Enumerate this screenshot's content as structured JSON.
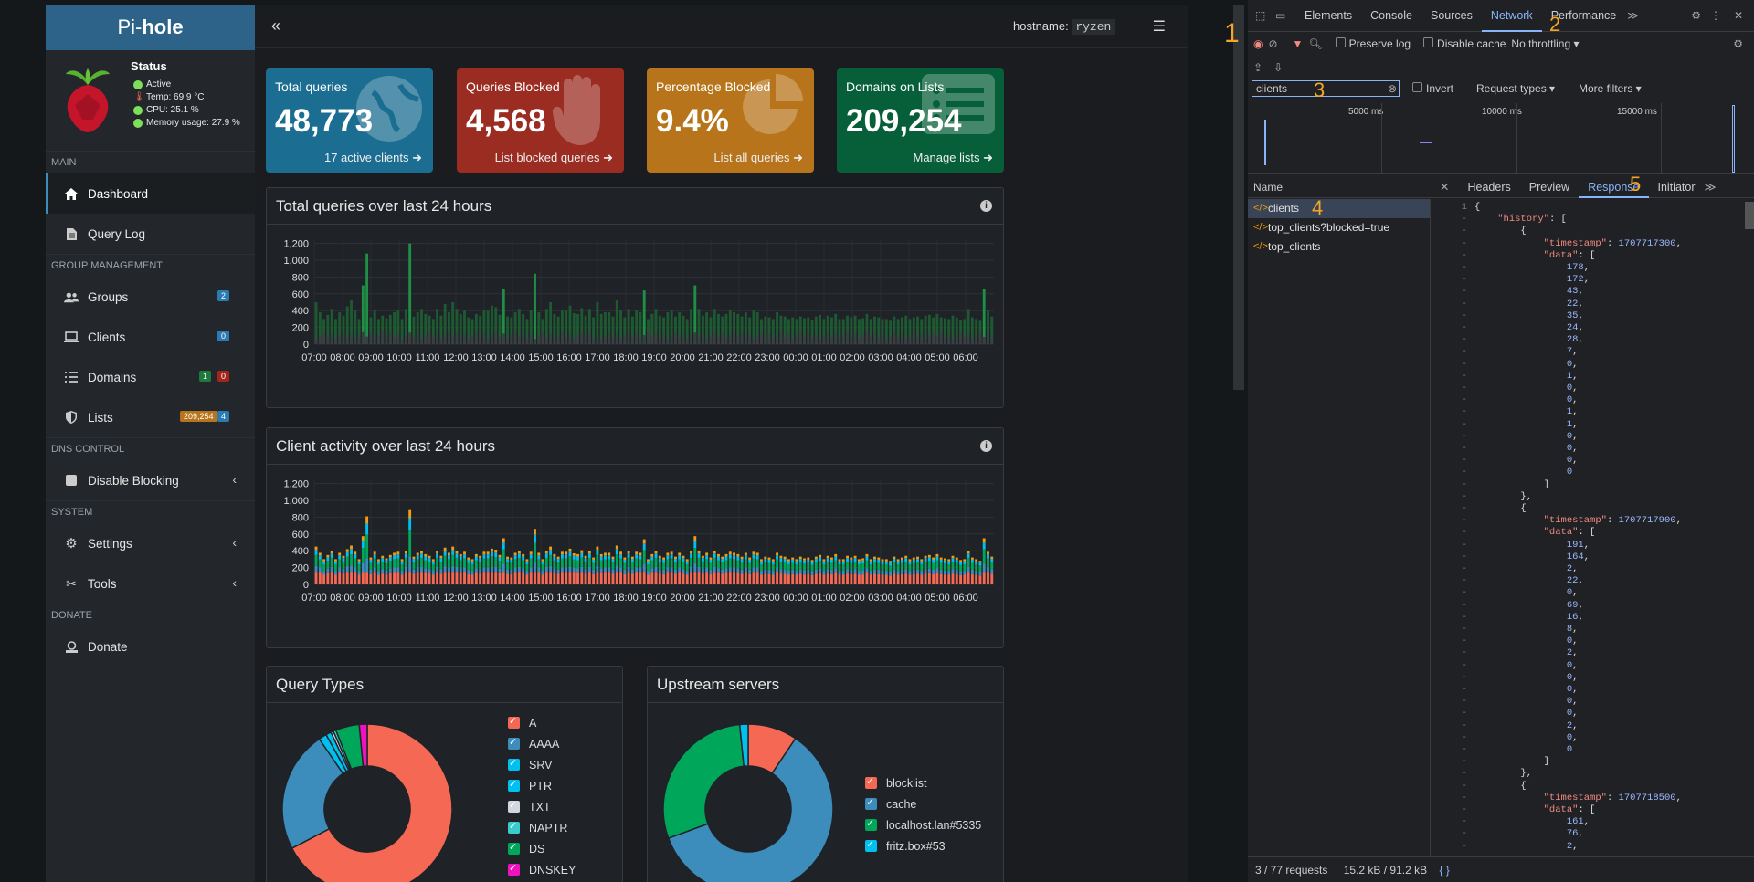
{
  "app": {
    "brand_pre": "Pi-",
    "brand_bold": "hole",
    "status_title": "Status",
    "status_active": "Active",
    "status_temp": "Temp: 69.9 °C",
    "status_cpu": "CPU: 25.1 %",
    "status_mem": "Memory usage: 27.9 %",
    "hostname_label": "hostname:",
    "hostname_value": "ryzen"
  },
  "sidebar": {
    "sections": [
      "MAIN",
      "GROUP MANAGEMENT",
      "DNS CONTROL",
      "SYSTEM",
      "DONATE"
    ],
    "items": [
      {
        "label": "Dashboard",
        "icon": "home-icon"
      },
      {
        "label": "Query Log",
        "icon": "file-icon"
      },
      {
        "label": "Groups",
        "icon": "users-icon",
        "badges": [
          "2"
        ]
      },
      {
        "label": "Clients",
        "icon": "laptop-icon",
        "badges": [
          "0"
        ]
      },
      {
        "label": "Domains",
        "icon": "list-icon",
        "badges": [
          "1",
          "0"
        ]
      },
      {
        "label": "Lists",
        "icon": "shield-icon",
        "badges": [
          "209,254",
          "4"
        ]
      },
      {
        "label": "Disable Blocking",
        "icon": "stop-icon"
      },
      {
        "label": "Settings",
        "icon": "gears-icon"
      },
      {
        "label": "Tools",
        "icon": "tools-icon"
      },
      {
        "label": "Donate",
        "icon": "donate-icon"
      }
    ]
  },
  "stats": [
    {
      "title": "Total queries",
      "value": "48,773",
      "footer": "17 active clients",
      "color": "#1b6d91"
    },
    {
      "title": "Queries Blocked",
      "value": "4,568",
      "footer": "List blocked queries",
      "color": "#9b2c22"
    },
    {
      "title": "Percentage Blocked",
      "value": "9.4%",
      "footer": "List all queries",
      "color": "#b7741a"
    },
    {
      "title": "Domains on Lists",
      "value": "209,254",
      "footer": "Manage lists",
      "color": "#065f38"
    }
  ],
  "panels": {
    "total_queries": "Total queries over last 24 hours",
    "client_activity": "Client activity over last 24 hours",
    "query_types": "Query Types",
    "upstream": "Upstream servers"
  },
  "chart_data": [
    {
      "type": "bar",
      "title": "Total queries over last 24 hours",
      "x_ticks": [
        "07:00",
        "08:00",
        "09:00",
        "10:00",
        "11:00",
        "12:00",
        "13:00",
        "14:00",
        "15:00",
        "16:00",
        "17:00",
        "18:00",
        "19:00",
        "20:00",
        "21:00",
        "22:00",
        "23:00",
        "00:00",
        "01:00",
        "02:00",
        "03:00",
        "04:00",
        "05:00",
        "06:00"
      ],
      "y_ticks": [
        0,
        200,
        400,
        600,
        800,
        1000,
        1200
      ],
      "ylim": [
        0,
        1250
      ],
      "series": [
        {
          "values": [
            500,
            380,
            300,
            350,
            420,
            300,
            380,
            340,
            450,
            520,
            400,
            300,
            700,
            1080,
            320,
            400,
            300,
            340,
            310,
            350,
            380,
            400,
            300,
            420,
            1200,
            330,
            380,
            420,
            360,
            340,
            300,
            420,
            340,
            480,
            380,
            500,
            420,
            360,
            400,
            320,
            300,
            360,
            340,
            400,
            400,
            460,
            440,
            350,
            660,
            330,
            320,
            380,
            420,
            360,
            300,
            400,
            840,
            380,
            300,
            420,
            500,
            360,
            330,
            400,
            400,
            460,
            370,
            360,
            430,
            340,
            420,
            320,
            500,
            360,
            380,
            380,
            330,
            520,
            400,
            320,
            420,
            330,
            400,
            380,
            640,
            300,
            360,
            420,
            340,
            320,
            380,
            400,
            330,
            380,
            340,
            300,
            420,
            700,
            420,
            340,
            380,
            320,
            420,
            360,
            330,
            360,
            400,
            380,
            360,
            330,
            380,
            320,
            400,
            380,
            300,
            330,
            320,
            300,
            380,
            340,
            330,
            300,
            320,
            300,
            330,
            310,
            320,
            290,
            330,
            350,
            300,
            340,
            320,
            360,
            300,
            300,
            340,
            320,
            340,
            300,
            310,
            360,
            300,
            330,
            320,
            300,
            300,
            280,
            330,
            300,
            320,
            340,
            300,
            320,
            330,
            300,
            340,
            350,
            320,
            360,
            320,
            310,
            300,
            340,
            320,
            290,
            300,
            420,
            320,
            300,
            280,
            660,
            400,
            330
          ]
        }
      ]
    },
    {
      "type": "bar",
      "title": "Client activity over last 24 hours",
      "x_ticks": [
        "07:00",
        "08:00",
        "09:00",
        "10:00",
        "11:00",
        "12:00",
        "13:00",
        "14:00",
        "15:00",
        "16:00",
        "17:00",
        "18:00",
        "19:00",
        "20:00",
        "21:00",
        "22:00",
        "23:00",
        "00:00",
        "01:00",
        "02:00",
        "03:00",
        "04:00",
        "05:00",
        "06:00"
      ],
      "y_ticks": [
        0,
        200,
        400,
        600,
        800,
        1000,
        1200
      ],
      "ylim": [
        0,
        1250
      ]
    },
    {
      "type": "pie",
      "title": "Query Types",
      "labels": [
        "A",
        "AAAA",
        "SRV",
        "PTR",
        "TXT",
        "NAPTR",
        "DS",
        "DNSKEY"
      ],
      "colors": [
        "#f56954",
        "#3c8dbc",
        "#00c0ef",
        "#00c0ef",
        "#d2d6de",
        "#39cccc",
        "#00a65a",
        "#f012be"
      ],
      "values": [
        67,
        23,
        1.5,
        1,
        0.5,
        0.5,
        4.5,
        1.5
      ]
    },
    {
      "type": "pie",
      "title": "Upstream servers",
      "labels": [
        "blocklist",
        "cache",
        "localhost.lan#5335",
        "fritz.box#53"
      ],
      "colors": [
        "#f56954",
        "#3c8dbc",
        "#00a65a",
        "#00c0ef"
      ],
      "values": [
        9.4,
        60,
        29,
        1.6
      ]
    }
  ],
  "devtools": {
    "tabs": [
      "Elements",
      "Console",
      "Sources",
      "Network",
      "Performance"
    ],
    "selected_tab": "Network",
    "preserve_log": "Preserve log",
    "disable_cache": "Disable cache",
    "throttling": "No throttling",
    "filter_value": "clients",
    "invert": "Invert",
    "request_types": "Request types",
    "more_filters": "More filters",
    "ruler": [
      "5000 ms",
      "10000 ms",
      "15000 ms"
    ],
    "name_header": "Name",
    "requests": [
      "clients",
      "top_clients?blocked=true",
      "top_clients"
    ],
    "response_tabs": [
      "Headers",
      "Preview",
      "Response",
      "Initiator"
    ],
    "selected_response_tab": "Response",
    "status": "3 / 77 requests",
    "transfer": "15.2 kB / 91.2 kB",
    "annotations": [
      "1",
      "2",
      "3",
      "4",
      "5"
    ],
    "json_lines": [
      "{",
      "    \"history\": [",
      "        {",
      "            \"timestamp\": 1707717300,",
      "            \"data\": [",
      "                178,",
      "                172,",
      "                43,",
      "                22,",
      "                35,",
      "                24,",
      "                28,",
      "                7,",
      "                0,",
      "                1,",
      "                0,",
      "                0,",
      "                1,",
      "                1,",
      "                0,",
      "                0,",
      "                0,",
      "                0",
      "            ]",
      "        },",
      "        {",
      "            \"timestamp\": 1707717900,",
      "            \"data\": [",
      "                191,",
      "                164,",
      "                2,",
      "                22,",
      "                0,",
      "                69,",
      "                16,",
      "                8,",
      "                0,",
      "                2,",
      "                0,",
      "                0,",
      "                0,",
      "                0,",
      "                0,",
      "                2,",
      "                0,",
      "                0",
      "            ]",
      "        },",
      "        {",
      "            \"timestamp\": 1707718500,",
      "            \"data\": [",
      "                161,",
      "                76,",
      "                2,"
    ]
  }
}
